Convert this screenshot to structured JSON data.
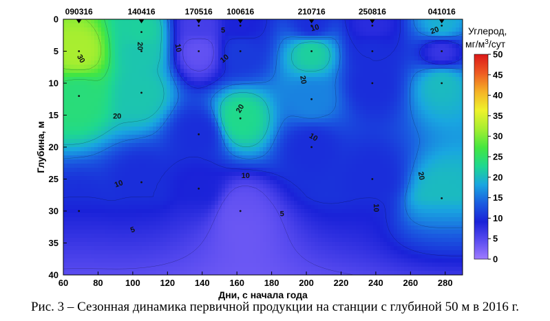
{
  "figure": {
    "caption": "Рис. 3 – Сезонная динамика первичной продукции на станции с глубиной 50 м в 2016 г."
  },
  "chart_data": {
    "type": "heatmap",
    "subtype": "filled-contour",
    "xlabel": "Дни, с начала года",
    "ylabel": "Глубина, м",
    "xlim": [
      60,
      290
    ],
    "ylim": [
      40,
      0
    ],
    "x_ticks": [
      60,
      80,
      100,
      120,
      140,
      160,
      180,
      200,
      220,
      240,
      260,
      280
    ],
    "y_ticks": [
      0,
      5,
      10,
      15,
      20,
      25,
      30,
      35,
      40
    ],
    "colorbar": {
      "title_line1": "Углерод,",
      "title_line2_pre": "мг/м",
      "title_line2_sup": "3",
      "title_line2_post": "/сут",
      "range": [
        0,
        50
      ],
      "ticks": [
        0,
        5,
        10,
        15,
        20,
        25,
        30,
        35,
        40,
        45,
        50
      ],
      "colors": [
        "#9f7bff",
        "#5a4cf0",
        "#1a22d8",
        "#1a5ce0",
        "#19a6e0",
        "#1ed890",
        "#44e640",
        "#a6ee30",
        "#eff22c",
        "#f5b226",
        "#ee5a22",
        "#dc1818"
      ]
    },
    "stations": [
      {
        "label": "090316",
        "day": 69
      },
      {
        "label": "140416",
        "day": 105
      },
      {
        "label": "170516",
        "day": 138
      },
      {
        "label": "100616",
        "day": 162
      },
      {
        "label": "210716",
        "day": 203
      },
      {
        "label": "250816",
        "day": 238
      },
      {
        "label": "041016",
        "day": 278
      }
    ],
    "sample_points": [
      {
        "day": 69,
        "depth": 5,
        "value": 32
      },
      {
        "day": 69,
        "depth": 12,
        "value": 24
      },
      {
        "day": 69,
        "depth": 30,
        "value": 10
      },
      {
        "day": 105,
        "depth": 2,
        "value": 22
      },
      {
        "day": 105,
        "depth": 5,
        "value": 21
      },
      {
        "day": 105,
        "depth": 11.5,
        "value": 21
      },
      {
        "day": 105,
        "depth": 25.5,
        "value": 10
      },
      {
        "day": 138,
        "depth": 1,
        "value": 6
      },
      {
        "day": 138,
        "depth": 5,
        "value": 4
      },
      {
        "day": 138,
        "depth": 18,
        "value": 10
      },
      {
        "day": 138,
        "depth": 26.5,
        "value": 9
      },
      {
        "day": 162,
        "depth": 1,
        "value": 9
      },
      {
        "day": 162,
        "depth": 5,
        "value": 11
      },
      {
        "day": 162,
        "depth": 15.5,
        "value": 23
      },
      {
        "day": 162,
        "depth": 30,
        "value": 4
      },
      {
        "day": 203,
        "depth": 1,
        "value": 10
      },
      {
        "day": 203,
        "depth": 5,
        "value": 22
      },
      {
        "day": 203,
        "depth": 12.5,
        "value": 16
      },
      {
        "day": 203,
        "depth": 20,
        "value": 10
      },
      {
        "day": 238,
        "depth": 1,
        "value": 8
      },
      {
        "day": 238,
        "depth": 5,
        "value": 10
      },
      {
        "day": 238,
        "depth": 10,
        "value": 10
      },
      {
        "day": 238,
        "depth": 25,
        "value": 10
      },
      {
        "day": 278,
        "depth": 1,
        "value": 19
      },
      {
        "day": 278,
        "depth": 5,
        "value": 7
      },
      {
        "day": 278,
        "depth": 10,
        "value": 20
      },
      {
        "day": 278,
        "depth": 28,
        "value": 20
      }
    ],
    "contour_labels": [
      {
        "text": "30",
        "day": 70,
        "depth": 6.2,
        "angle": 60
      },
      {
        "text": "20",
        "day": 104,
        "depth": 4.2,
        "angle": 90
      },
      {
        "text": "20",
        "day": 91,
        "depth": 15.2,
        "angle": 0
      },
      {
        "text": "10",
        "day": 126,
        "depth": 4.5,
        "angle": 80
      },
      {
        "text": "5",
        "day": 152,
        "depth": 1.8,
        "angle": 0
      },
      {
        "text": "10",
        "day": 153,
        "depth": 6.2,
        "angle": -40
      },
      {
        "text": "20",
        "day": 162,
        "depth": 14,
        "angle": -60
      },
      {
        "text": "10",
        "day": 205,
        "depth": 1.4,
        "angle": -15
      },
      {
        "text": "20",
        "day": 198,
        "depth": 9.5,
        "angle": 80
      },
      {
        "text": "10",
        "day": 204,
        "depth": 18.5,
        "angle": 30
      },
      {
        "text": "10",
        "day": 165,
        "depth": 24.5,
        "angle": 0
      },
      {
        "text": "10",
        "day": 92,
        "depth": 25.8,
        "angle": -20
      },
      {
        "text": "5",
        "day": 186,
        "depth": 30.5,
        "angle": 0
      },
      {
        "text": "5",
        "day": 100,
        "depth": 33,
        "angle": -20
      },
      {
        "text": "10",
        "day": 240,
        "depth": 29.5,
        "angle": 90
      },
      {
        "text": "20",
        "day": 266,
        "depth": 24.5,
        "angle": 80
      },
      {
        "text": "20",
        "day": 274,
        "depth": 1.8,
        "angle": -20
      }
    ]
  }
}
